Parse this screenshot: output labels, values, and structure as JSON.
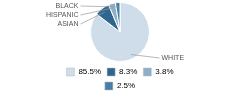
{
  "chart_data": {
    "type": "pie",
    "categories": [
      "WHITE",
      "ASIAN",
      "HISPANIC",
      "BLACK"
    ],
    "values": [
      85.5,
      8.3,
      3.8,
      2.5
    ],
    "value_labels": [
      "85.5%",
      "8.3%",
      "3.8%",
      "2.5%"
    ],
    "colors": [
      "#cfdcea",
      "#2e6690",
      "#8dafc8",
      "#4a7fa5"
    ],
    "legend": "bottom"
  }
}
